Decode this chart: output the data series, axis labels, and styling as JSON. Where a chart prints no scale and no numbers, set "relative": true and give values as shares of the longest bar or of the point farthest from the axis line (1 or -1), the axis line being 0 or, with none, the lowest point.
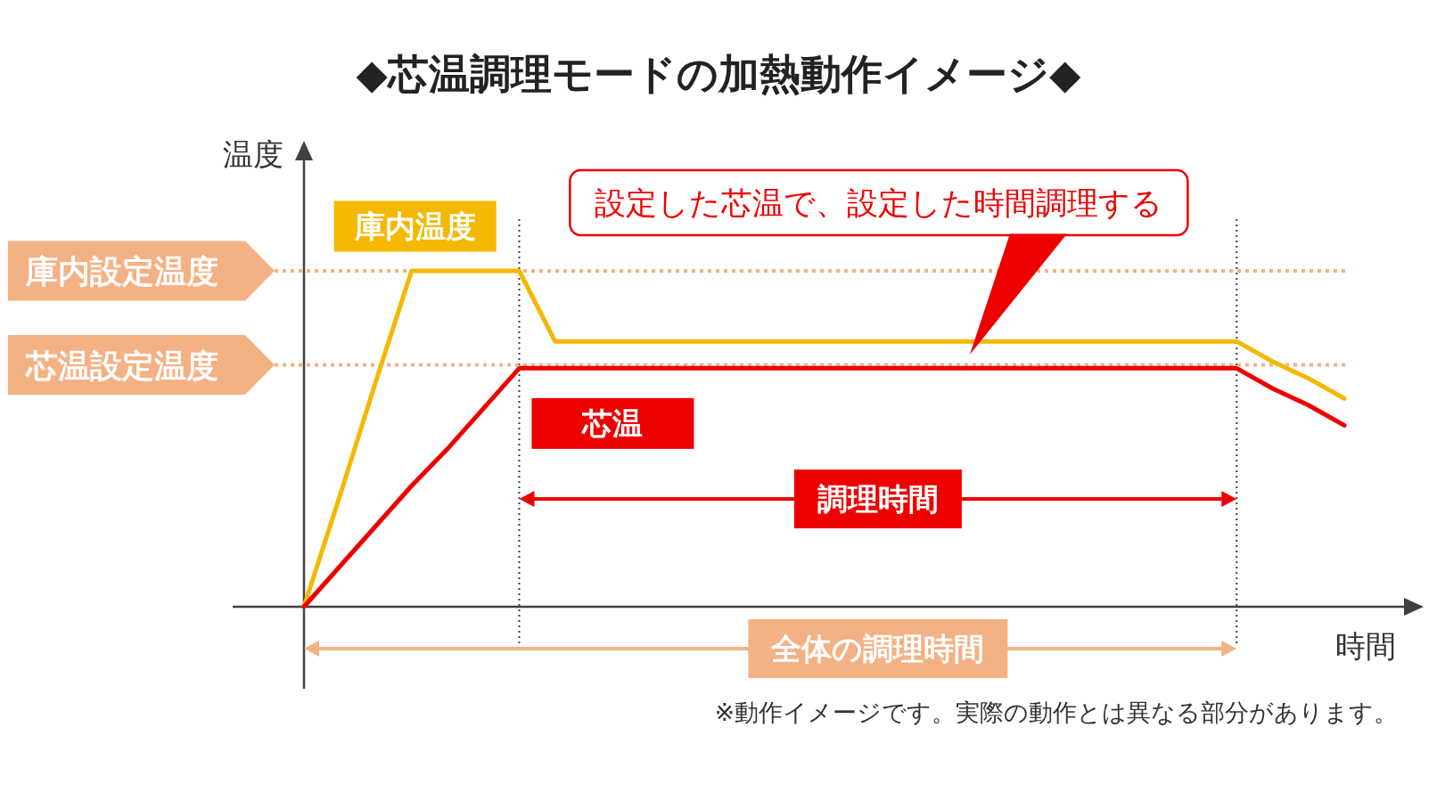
{
  "chart_data": {
    "type": "line",
    "title": "◆芯温調理モードの加熱動作イメージ◆",
    "xlabel": "時間",
    "ylabel": "温度",
    "relative": true,
    "categories": [
      null,
      null,
      null,
      null,
      null,
      null,
      null,
      null,
      null,
      null,
      null,
      null,
      null,
      null,
      null,
      null,
      null,
      null,
      null,
      null,
      null,
      null,
      null,
      null,
      null,
      null,
      null,
      null,
      null,
      null
    ],
    "series": [
      {
        "name": "庫内温度",
        "color": "#f5b800",
        "values": [
          0,
          0.33,
          0.67,
          1,
          1,
          1,
          1,
          0.79,
          0.79,
          0.79,
          0.79,
          0.79,
          0.79,
          0.79,
          0.79,
          0.79,
          0.79,
          0.79,
          0.79,
          0.79,
          0.79,
          0.79,
          0.79,
          0.79,
          0.79,
          0.79,
          0.79,
          0.73,
          0.68,
          0.62
        ]
      },
      {
        "name": "芯温",
        "color": "#ee0000",
        "values": [
          0,
          0.12,
          0.24,
          0.36,
          0.47,
          0.59,
          0.71,
          0.71,
          0.71,
          0.71,
          0.71,
          0.71,
          0.71,
          0.71,
          0.71,
          0.71,
          0.71,
          0.71,
          0.71,
          0.71,
          0.71,
          0.71,
          0.71,
          0.71,
          0.71,
          0.71,
          0.71,
          0.65,
          0.6,
          0.54
        ]
      }
    ],
    "ref_lines": [
      {
        "axis": "y",
        "value": 1,
        "label": "庫内設定温度",
        "color": "#f4b183",
        "line_style": "dotted"
      },
      {
        "axis": "y",
        "value": 0.72,
        "label": "芯温設定温度",
        "color": "#f4b183",
        "line_style": "dotted"
      }
    ],
    "annotations": [
      "設定した芯温で、設定した時間調理する",
      "調理時間",
      "全体の調理時間",
      "※動作イメージです。実際の動作とは異なる部分があります。"
    ]
  }
}
